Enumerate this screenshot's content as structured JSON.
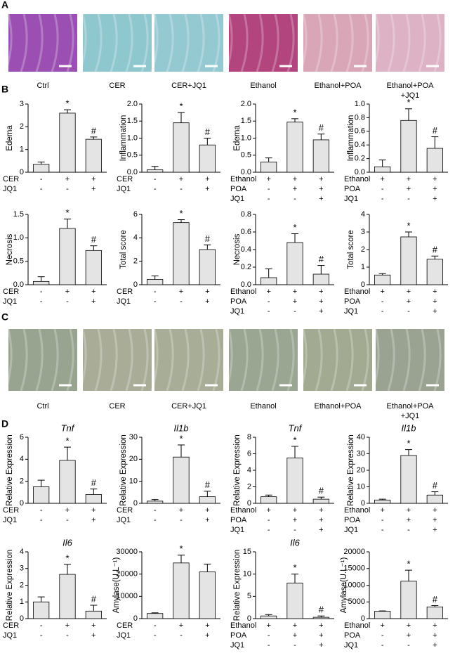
{
  "panels": [
    {
      "label": "A",
      "images": [
        {
          "caption": [
            "Ctrl"
          ],
          "color": "#9b4fb2"
        },
        {
          "caption": [
            "CER"
          ],
          "color": "#8fc7cf"
        },
        {
          "caption": [
            "CER+JQ1"
          ],
          "color": "#95c9d2"
        },
        {
          "caption": [
            "Ethanol"
          ],
          "color": "#b2447e"
        },
        {
          "caption": [
            "Ethanol+POA"
          ],
          "color": "#d9a6b8"
        },
        {
          "caption": [
            "Ethanol+POA",
            "+JQ1"
          ],
          "color": "#dcb2c4"
        }
      ]
    },
    {
      "label": "B"
    },
    {
      "label": "C",
      "images": [
        {
          "caption": [
            "Ctrl"
          ],
          "color": "#98a48f"
        },
        {
          "caption": [
            "CER"
          ],
          "color": "#a9ad98"
        },
        {
          "caption": [
            "CER+JQ1"
          ],
          "color": "#a7ad96"
        },
        {
          "caption": [
            "Ethanol"
          ],
          "color": "#9aa592"
        },
        {
          "caption": [
            "Ethanol+POA"
          ],
          "color": "#a3aa92"
        },
        {
          "caption": [
            "Ethanol+POA",
            "+JQ1"
          ],
          "color": "#9aa392"
        }
      ]
    },
    {
      "label": "D"
    }
  ],
  "chart_data": [
    {
      "type": "bar",
      "ylabel": "Edema",
      "color": "#e4e4e4",
      "values": [
        0.35,
        2.6,
        1.45
      ],
      "errors": [
        0.1,
        0.15,
        0.1
      ],
      "significance": [
        null,
        "*",
        "#"
      ],
      "ylim": [
        0,
        3
      ],
      "yticks": [
        0,
        1,
        2,
        3
      ],
      "conditions": [
        {
          "name": "CER",
          "signs": [
            "-",
            "+",
            "+"
          ]
        },
        {
          "name": "JQ1",
          "signs": [
            "-",
            "-",
            "+"
          ]
        }
      ]
    },
    {
      "type": "bar",
      "ylabel": "Inflammation",
      "color": "#e4e4e4",
      "values": [
        0.07,
        1.45,
        0.8
      ],
      "errors": [
        0.1,
        0.3,
        0.2
      ],
      "significance": [
        null,
        "*",
        "#"
      ],
      "ylim": [
        0,
        2
      ],
      "yticks": [
        {
          "value": 0,
          "label": "0.0"
        },
        {
          "value": 0.5,
          "label": "0.5"
        },
        {
          "value": 1,
          "label": "1.0"
        },
        {
          "value": 1.5,
          "label": "1.5"
        },
        {
          "value": 2,
          "label": "2.0"
        }
      ],
      "conditions": [
        {
          "name": "CER",
          "signs": [
            "-",
            "+",
            "+"
          ]
        },
        {
          "name": "JQ1",
          "signs": [
            "-",
            "-",
            "+"
          ]
        }
      ]
    },
    {
      "type": "bar",
      "ylabel": "Edema",
      "color": "#e4e4e4",
      "values": [
        0.3,
        1.47,
        0.95
      ],
      "errors": [
        0.12,
        0.1,
        0.17
      ],
      "significance": [
        null,
        "*",
        "#"
      ],
      "ylim": [
        0,
        2
      ],
      "yticks": [
        {
          "value": 0,
          "label": "0.0"
        },
        {
          "value": 0.5,
          "label": "0.5"
        },
        {
          "value": 1,
          "label": "1.0"
        },
        {
          "value": 1.5,
          "label": "1.5"
        },
        {
          "value": 2,
          "label": "2.0"
        }
      ],
      "conditions": [
        {
          "name": "Ethanol",
          "signs": [
            "+",
            "+",
            "+"
          ]
        },
        {
          "name": "POA",
          "signs": [
            "-",
            "+",
            "+"
          ]
        },
        {
          "name": "JQ1",
          "signs": [
            "-",
            "-",
            "+"
          ]
        }
      ]
    },
    {
      "type": "bar",
      "ylabel": "Inflammation",
      "color": "#e4e4e4",
      "values": [
        0.08,
        0.76,
        0.35
      ],
      "errors": [
        0.1,
        0.17,
        0.17
      ],
      "significance": [
        null,
        "*",
        "#"
      ],
      "ylim": [
        0,
        1
      ],
      "yticks": [
        {
          "value": 0,
          "label": "0.0"
        },
        0.2,
        0.4,
        0.6,
        0.8,
        {
          "value": 1,
          "label": "1.0"
        }
      ],
      "conditions": [
        {
          "name": "Ethanol",
          "signs": [
            "+",
            "+",
            "+"
          ]
        },
        {
          "name": "POA",
          "signs": [
            "-",
            "+",
            "+"
          ]
        },
        {
          "name": "JQ1",
          "signs": [
            "-",
            "-",
            "+"
          ]
        }
      ]
    },
    {
      "type": "bar",
      "ylabel": "Necrosis",
      "color": "#e4e4e4",
      "values": [
        0.07,
        1.2,
        0.73
      ],
      "errors": [
        0.1,
        0.2,
        0.1
      ],
      "significance": [
        null,
        "*",
        "#"
      ],
      "ylim": [
        0,
        1.5
      ],
      "yticks": [
        {
          "value": 0,
          "label": "0.0"
        },
        0.5,
        {
          "value": 1,
          "label": "1.0"
        },
        1.5
      ],
      "conditions": [
        {
          "name": "CER",
          "signs": [
            "-",
            "+",
            "+"
          ]
        },
        {
          "name": "JQ1",
          "signs": [
            "-",
            "-",
            "+"
          ]
        }
      ]
    },
    {
      "type": "bar",
      "ylabel": "Total score",
      "color": "#e4e4e4",
      "values": [
        0.45,
        5.3,
        3.0
      ],
      "errors": [
        0.3,
        0.25,
        0.4
      ],
      "significance": [
        null,
        "*",
        "#"
      ],
      "ylim": [
        0,
        6
      ],
      "yticks": [
        0,
        2,
        4,
        6
      ],
      "conditions": [
        {
          "name": "CER",
          "signs": [
            "-",
            "+",
            "+"
          ]
        },
        {
          "name": "JQ1",
          "signs": [
            "-",
            "-",
            "+"
          ]
        }
      ]
    },
    {
      "type": "bar",
      "ylabel": "Necrosis",
      "color": "#e4e4e4",
      "values": [
        0.08,
        0.48,
        0.12
      ],
      "errors": [
        0.1,
        0.1,
        0.1
      ],
      "significance": [
        null,
        "*",
        "#"
      ],
      "ylim": [
        0,
        0.8
      ],
      "yticks": [
        {
          "value": 0,
          "label": "0.0"
        },
        0.2,
        0.4,
        0.6,
        0.8
      ],
      "conditions": [
        {
          "name": "Ethanol",
          "signs": [
            "+",
            "+",
            "+"
          ]
        },
        {
          "name": "POA",
          "signs": [
            "-",
            "+",
            "+"
          ]
        },
        {
          "name": "JQ1",
          "signs": [
            "-",
            "-",
            "+"
          ]
        }
      ]
    },
    {
      "type": "bar",
      "ylabel": "Total score",
      "color": "#e4e4e4",
      "values": [
        0.55,
        2.72,
        1.45
      ],
      "errors": [
        0.08,
        0.28,
        0.18
      ],
      "significance": [
        null,
        "*",
        "#"
      ],
      "ylim": [
        0,
        4
      ],
      "yticks": [
        0,
        1,
        2,
        3,
        4
      ],
      "conditions": [
        {
          "name": "Ethanol",
          "signs": [
            "+",
            "+",
            "+"
          ]
        },
        {
          "name": "POA",
          "signs": [
            "-",
            "+",
            "+"
          ]
        },
        {
          "name": "JQ1",
          "signs": [
            "-",
            "-",
            "+"
          ]
        }
      ]
    },
    {
      "type": "bar",
      "title": "Tnf",
      "ylabel": "Relative Expression",
      "color": "#e4e4e4",
      "values": [
        1.5,
        3.9,
        0.8
      ],
      "errors": [
        0.6,
        1.2,
        0.5
      ],
      "significance": [
        null,
        "*",
        "#"
      ],
      "ylim": [
        0,
        6
      ],
      "yticks": [
        0,
        2,
        4,
        6
      ],
      "conditions": [
        {
          "name": "CER",
          "signs": [
            "-",
            "+",
            "+"
          ]
        },
        {
          "name": "JQ1",
          "signs": [
            "-",
            "-",
            "+"
          ]
        }
      ]
    },
    {
      "type": "bar",
      "title": "Il1b",
      "ylabel": "Relative Expression",
      "color": "#e4e4e4",
      "values": [
        1,
        21,
        3
      ],
      "errors": [
        0.7,
        5.5,
        2.5
      ],
      "significance": [
        null,
        "*",
        "#"
      ],
      "ylim": [
        0,
        30
      ],
      "yticks": [
        0,
        10,
        20,
        30
      ],
      "conditions": [
        {
          "name": "CER",
          "signs": [
            "-",
            "+",
            "+"
          ]
        },
        {
          "name": "JQ1",
          "signs": [
            "-",
            "-",
            "+"
          ]
        }
      ]
    },
    {
      "type": "bar",
      "title": "Tnf",
      "ylabel": "Relative Expression",
      "color": "#e4e4e4",
      "values": [
        0.8,
        5.5,
        0.5
      ],
      "errors": [
        0.2,
        1.4,
        0.25
      ],
      "significance": [
        null,
        "*",
        "#"
      ],
      "ylim": [
        0,
        8
      ],
      "yticks": [
        0,
        2,
        4,
        6,
        8
      ],
      "conditions": [
        {
          "name": "Ethanol",
          "signs": [
            "+",
            "+",
            "+"
          ]
        },
        {
          "name": "POA",
          "signs": [
            "-",
            "+",
            "+"
          ]
        },
        {
          "name": "JQ1",
          "signs": [
            "-",
            "-",
            "+"
          ]
        }
      ]
    },
    {
      "type": "bar",
      "title": "Il1b",
      "ylabel": "Relative Expression",
      "color": "#e4e4e4",
      "values": [
        2,
        29,
        5
      ],
      "errors": [
        0.5,
        3.5,
        2
      ],
      "significance": [
        null,
        "*",
        "#"
      ],
      "ylim": [
        0,
        40
      ],
      "yticks": [
        0,
        10,
        20,
        30,
        40
      ],
      "conditions": [
        {
          "name": "Ethanol",
          "signs": [
            "+",
            "+",
            "+"
          ]
        },
        {
          "name": "POA",
          "signs": [
            "-",
            "+",
            "+"
          ]
        },
        {
          "name": "JQ1",
          "signs": [
            "-",
            "-",
            "+"
          ]
        }
      ]
    },
    {
      "type": "bar",
      "title": "Il6",
      "ylabel": "Relative Expression",
      "color": "#e4e4e4",
      "values": [
        1.0,
        2.65,
        0.45
      ],
      "errors": [
        0.3,
        0.6,
        0.35
      ],
      "significance": [
        null,
        "*",
        "#"
      ],
      "ylim": [
        0,
        4
      ],
      "yticks": [
        0,
        1,
        2,
        3,
        4
      ],
      "conditions": [
        {
          "name": "CER",
          "signs": [
            "-",
            "+",
            "+"
          ]
        },
        {
          "name": "JQ1",
          "signs": [
            "-",
            "-",
            "+"
          ]
        }
      ]
    },
    {
      "type": "bar",
      "ylabel": "Amylase(U.L⁻¹)",
      "color": "#e4e4e4",
      "values": [
        2300,
        25000,
        21000
      ],
      "errors": [
        300,
        3500,
        3500
      ],
      "significance": [
        null,
        "*",
        null
      ],
      "ylim": [
        0,
        30000
      ],
      "yticks": [
        0,
        10000,
        20000,
        30000
      ],
      "conditions": [
        {
          "name": "CER",
          "signs": [
            "-",
            "+",
            "+"
          ]
        },
        {
          "name": "JQ1",
          "signs": [
            "-",
            "-",
            "+"
          ]
        }
      ]
    },
    {
      "type": "bar",
      "title": "Il6",
      "ylabel": "Relative Expression",
      "color": "#e4e4e4",
      "values": [
        0.6,
        8,
        0.3
      ],
      "errors": [
        0.3,
        2,
        0.3
      ],
      "significance": [
        null,
        "*",
        "#"
      ],
      "ylim": [
        0,
        15
      ],
      "yticks": [
        0,
        5,
        10,
        15
      ],
      "conditions": [
        {
          "name": "Ethanol",
          "signs": [
            "+",
            "+",
            "+"
          ]
        },
        {
          "name": "POA",
          "signs": [
            "-",
            "+",
            "+"
          ]
        },
        {
          "name": "JQ1",
          "signs": [
            "-",
            "-",
            "+"
          ]
        }
      ]
    },
    {
      "type": "bar",
      "ylabel": "Amylase(U.L⁻¹)",
      "color": "#e4e4e4",
      "values": [
        2200,
        11200,
        3500
      ],
      "errors": [
        100,
        3300,
        400
      ],
      "significance": [
        null,
        "*",
        "#"
      ],
      "ylim": [
        0,
        20000
      ],
      "yticks": [
        0,
        5000,
        10000,
        15000,
        20000
      ],
      "conditions": [
        {
          "name": "Ethanol",
          "signs": [
            "+",
            "+",
            "+"
          ]
        },
        {
          "name": "POA",
          "signs": [
            "-",
            "+",
            "+"
          ]
        },
        {
          "name": "JQ1",
          "signs": [
            "-",
            "-",
            "+"
          ]
        }
      ]
    }
  ]
}
